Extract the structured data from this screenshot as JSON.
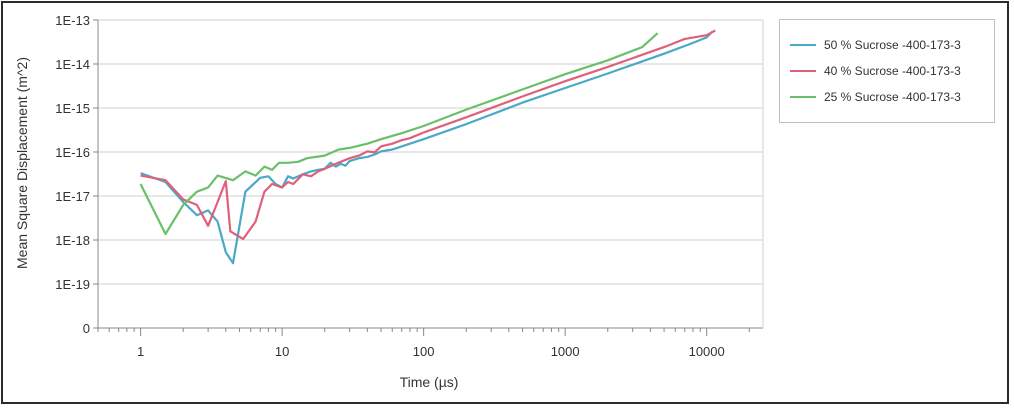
{
  "chart_data": {
    "type": "line",
    "xlabel": "Time (µs)",
    "ylabel": "Mean Square Displacement (m^2)",
    "x_scale": "log",
    "y_scale": "log",
    "xlim": [
      0.5,
      25000
    ],
    "x_ticks": [
      {
        "value": 1,
        "label": "1"
      },
      {
        "value": 10,
        "label": "10"
      },
      {
        "value": 100,
        "label": "100"
      },
      {
        "value": 1000,
        "label": "1000"
      },
      {
        "value": 10000,
        "label": "10000"
      }
    ],
    "y_ticks": [
      "0",
      "1E-19",
      "1E-18",
      "1E-17",
      "1E-16",
      "1E-15",
      "1E-14",
      "1E-13"
    ],
    "grid": "horizontal",
    "legend_position": "right",
    "series": [
      {
        "name": "50 % Sucrose -400-173-3",
        "color": "#4aa9c6",
        "points": [
          [
            1,
            3.2e-17
          ],
          [
            1.5,
            2e-17
          ],
          [
            2,
            7e-18
          ],
          [
            2.5,
            3.5e-18
          ],
          [
            3,
            4.5e-18
          ],
          [
            3.5,
            2.5e-18
          ],
          [
            4,
            5e-19
          ],
          [
            4.5,
            2.8e-19
          ],
          [
            5.5,
            1.2e-17
          ],
          [
            7,
            2.5e-17
          ],
          [
            8,
            2.7e-17
          ],
          [
            9,
            1.8e-17
          ],
          [
            10,
            1.5e-17
          ],
          [
            11,
            2.7e-17
          ],
          [
            12,
            2.4e-17
          ],
          [
            14,
            3e-17
          ],
          [
            16,
            3.5e-17
          ],
          [
            18,
            3.8e-17
          ],
          [
            20,
            4e-17
          ],
          [
            22,
            5.5e-17
          ],
          [
            24,
            4.5e-17
          ],
          [
            26,
            5.2e-17
          ],
          [
            28,
            4.7e-17
          ],
          [
            30,
            6e-17
          ],
          [
            35,
            7e-17
          ],
          [
            40,
            7.5e-17
          ],
          [
            45,
            8.5e-17
          ],
          [
            50,
            1e-16
          ],
          [
            60,
            1.1e-16
          ],
          [
            70,
            1.3e-16
          ],
          [
            80,
            1.5e-16
          ],
          [
            100,
            1.9e-16
          ],
          [
            200,
            4.2e-16
          ],
          [
            500,
            1.3e-15
          ],
          [
            1000,
            2.8e-15
          ],
          [
            2000,
            6e-15
          ],
          [
            5000,
            1.7e-14
          ],
          [
            8000,
            3e-14
          ],
          [
            10000,
            4e-14
          ],
          [
            11000,
            5.5e-14
          ]
        ]
      },
      {
        "name": "40 % Sucrose -400-173-3",
        "color": "#e0607a",
        "points": [
          [
            1,
            2.8e-17
          ],
          [
            1.5,
            2.2e-17
          ],
          [
            2,
            8e-18
          ],
          [
            2.5,
            6e-18
          ],
          [
            3,
            2e-18
          ],
          [
            3.5,
            7e-18
          ],
          [
            4,
            2.1e-17
          ],
          [
            4.3,
            1.5e-18
          ],
          [
            5.3,
            1e-18
          ],
          [
            6.5,
            2.5e-18
          ],
          [
            7.5,
            1.2e-17
          ],
          [
            8.5,
            1.8e-17
          ],
          [
            10,
            1.5e-17
          ],
          [
            11,
            2e-17
          ],
          [
            12,
            1.8e-17
          ],
          [
            14,
            3e-17
          ],
          [
            16,
            2.7e-17
          ],
          [
            18,
            3.5e-17
          ],
          [
            20,
            4e-17
          ],
          [
            25,
            5.5e-17
          ],
          [
            30,
            7e-17
          ],
          [
            35,
            8e-17
          ],
          [
            40,
            1e-16
          ],
          [
            45,
            9.5e-17
          ],
          [
            50,
            1.3e-16
          ],
          [
            60,
            1.5e-16
          ],
          [
            70,
            1.8e-16
          ],
          [
            80,
            2e-16
          ],
          [
            100,
            2.7e-16
          ],
          [
            200,
            6e-16
          ],
          [
            500,
            1.8e-15
          ],
          [
            1000,
            4e-15
          ],
          [
            2000,
            8.5e-15
          ],
          [
            5000,
            2.4e-14
          ],
          [
            7000,
            3.7e-14
          ],
          [
            10000,
            4.5e-14
          ],
          [
            11500,
            5.8e-14
          ]
        ]
      },
      {
        "name": "25 % Sucrose -400-173-3",
        "color": "#6bbf6b",
        "points": [
          [
            1,
            1.8e-17
          ],
          [
            1.5,
            1.3e-18
          ],
          [
            2,
            6e-18
          ],
          [
            2.5,
            1.2e-17
          ],
          [
            3,
            1.5e-17
          ],
          [
            3.5,
            2.8e-17
          ],
          [
            4.5,
            2.2e-17
          ],
          [
            5.5,
            3.5e-17
          ],
          [
            6.5,
            2.8e-17
          ],
          [
            7.5,
            4.5e-17
          ],
          [
            8.5,
            3.8e-17
          ],
          [
            9.5,
            5.5e-17
          ],
          [
            11,
            5.5e-17
          ],
          [
            13,
            5.8e-17
          ],
          [
            15,
            7e-17
          ],
          [
            20,
            8e-17
          ],
          [
            25,
            1.1e-16
          ],
          [
            30,
            1.2e-16
          ],
          [
            40,
            1.5e-16
          ],
          [
            50,
            1.9e-16
          ],
          [
            70,
            2.6e-16
          ],
          [
            100,
            3.8e-16
          ],
          [
            200,
            9e-16
          ],
          [
            500,
            2.6e-15
          ],
          [
            1000,
            5.8e-15
          ],
          [
            2000,
            1.2e-14
          ],
          [
            3500,
            2.4e-14
          ],
          [
            4500,
            5e-14
          ]
        ]
      }
    ]
  }
}
